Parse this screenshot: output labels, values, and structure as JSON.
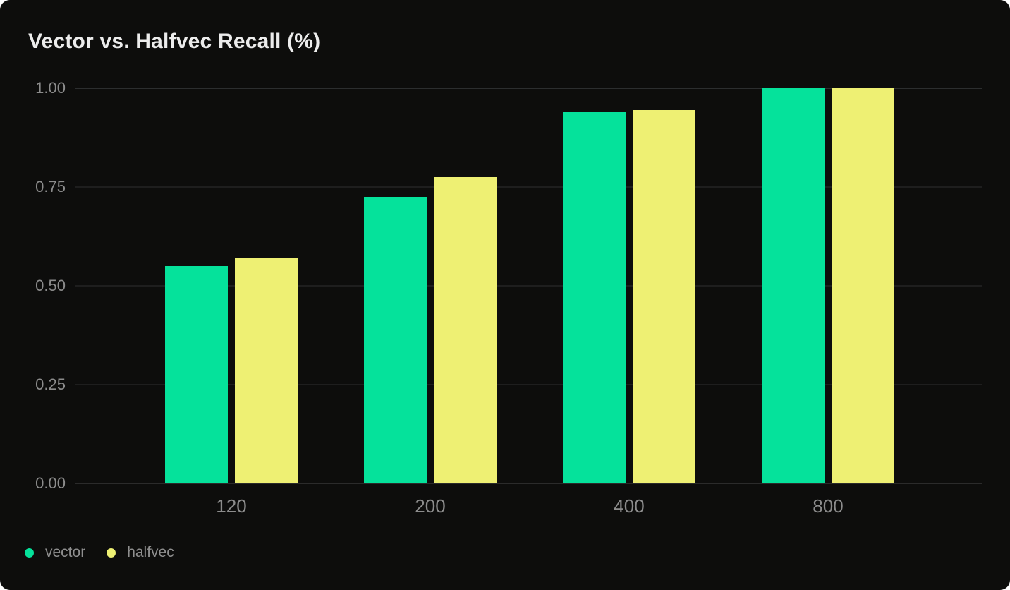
{
  "card": {
    "title": "Vector vs. Halfvec Recall (%)",
    "background": "#0d0d0c",
    "page_background": "#ffffff"
  },
  "chart_data": {
    "type": "bar",
    "title": "Vector vs. Halfvec Recall (%)",
    "categories": [
      "120",
      "200",
      "400",
      "800"
    ],
    "series": [
      {
        "name": "vector",
        "color": "#05e29b",
        "values": [
          0.55,
          0.725,
          0.94,
          1.0
        ]
      },
      {
        "name": "halfvec",
        "color": "#eef073",
        "values": [
          0.57,
          0.775,
          0.945,
          1.0
        ]
      }
    ],
    "xlabel": "",
    "ylabel": "",
    "ylim": [
      0,
      1
    ],
    "yticks": [
      {
        "value": 0,
        "label": "0.00"
      },
      {
        "value": 0.25,
        "label": "0.25"
      },
      {
        "value": 0.5,
        "label": "0.50"
      },
      {
        "value": 0.75,
        "label": "0.75"
      },
      {
        "value": 1,
        "label": "1.00"
      }
    ],
    "grid": true,
    "legend_position": "bottom-left",
    "text_color": "#8c8c8c",
    "gridline_color": "#1e1e1e"
  }
}
